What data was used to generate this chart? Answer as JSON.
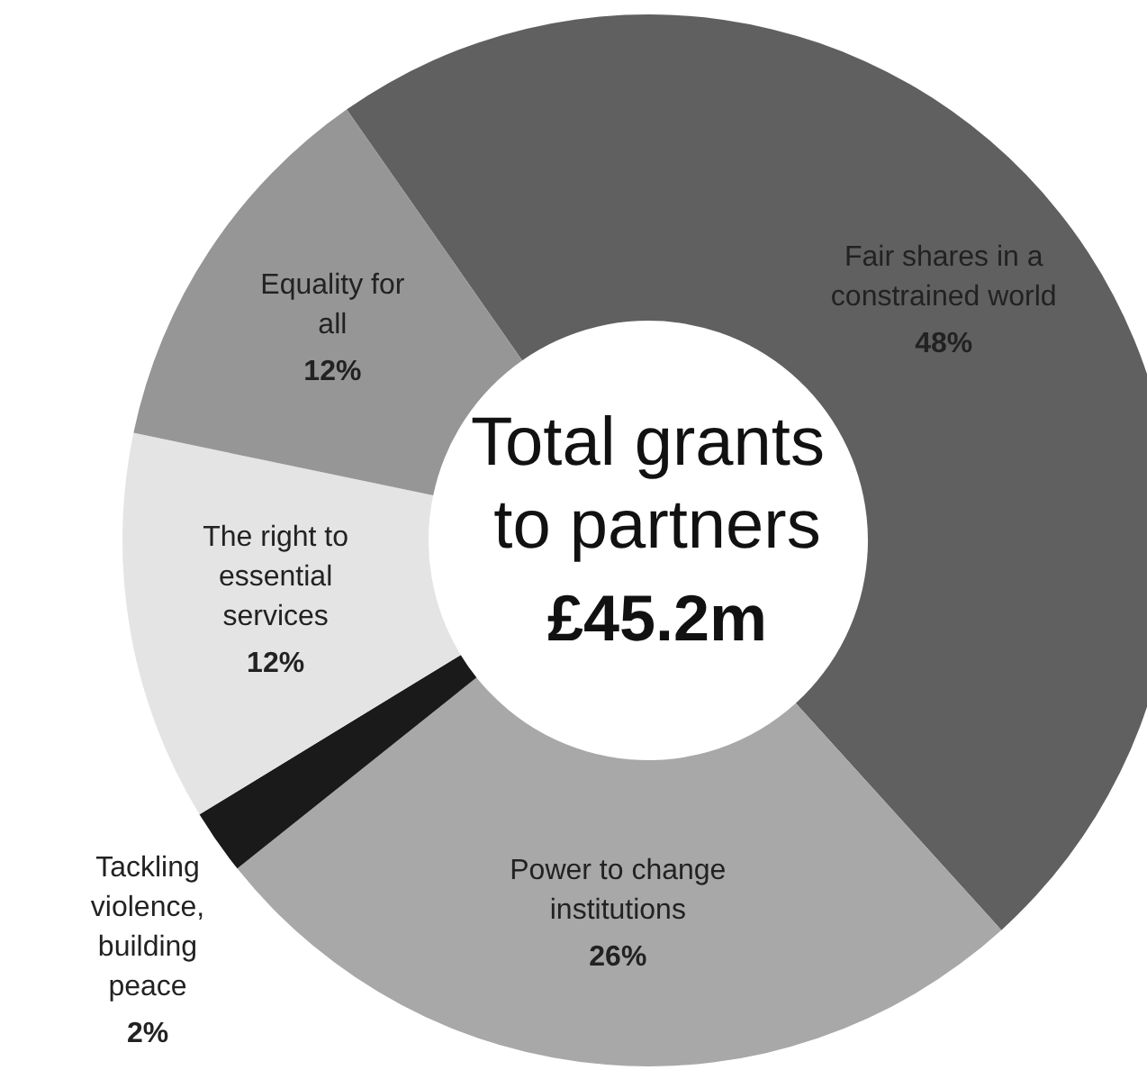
{
  "chart_data": {
    "type": "donut",
    "title": "Total grants to partners",
    "subtitle": "£45.2m",
    "categories": [
      "Fair shares in a constrained world",
      "Power to change institutions",
      "Tackling violence, building peace",
      "The right to essential services",
      "Equality for all"
    ],
    "values": [
      48,
      26,
      2,
      12,
      12
    ],
    "value_labels": [
      "48%",
      "26%",
      "2%",
      "12%",
      "12%"
    ],
    "colors": [
      "#606060",
      "#a8a8a8",
      "#1a1a1a",
      "#e4e4e4",
      "#969696"
    ]
  }
}
